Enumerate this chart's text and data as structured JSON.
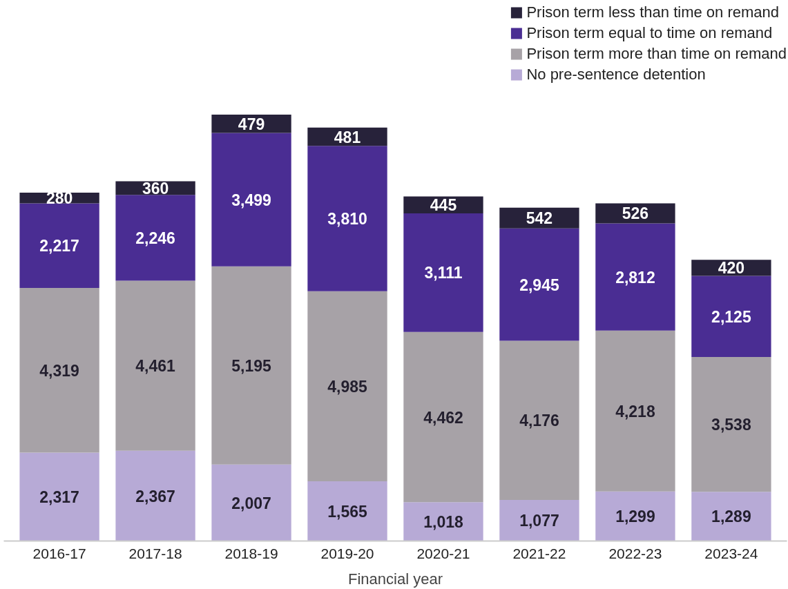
{
  "chart_data": {
    "type": "bar",
    "stacked": true,
    "xlabel": "Financial year",
    "categories": [
      "2016-17",
      "2017-18",
      "2018-19",
      "2019-20",
      "2020-21",
      "2021-22",
      "2022-23",
      "2023-24"
    ],
    "series": [
      {
        "name": "No pre-sentence detention",
        "color": "#b7aad6",
        "values": [
          2317,
          2367,
          2007,
          1565,
          1018,
          1077,
          1299,
          1289
        ],
        "value_labels": [
          "2,317",
          "2,367",
          "2,007",
          "1,565",
          "1,018",
          "1,077",
          "1,299",
          "1,289"
        ]
      },
      {
        "name": "Prison term more than time on remand",
        "color": "#a7a2a7",
        "values": [
          4319,
          4461,
          5195,
          4985,
          4462,
          4176,
          4218,
          3538
        ],
        "value_labels": [
          "4,319",
          "4,461",
          "5,195",
          "4,985",
          "4,462",
          "4,176",
          "4,218",
          "3,538"
        ]
      },
      {
        "name": "Prison term equal to time on remand",
        "color": "#4a2d93",
        "values": [
          2217,
          2246,
          3499,
          3810,
          3111,
          2945,
          2812,
          2125
        ],
        "value_labels": [
          "2,217",
          "2,246",
          "3,499",
          "3,810",
          "3,111",
          "2,945",
          "2,812",
          "2,125"
        ]
      },
      {
        "name": "Prison term less than time on remand",
        "color": "#27223a",
        "values": [
          280,
          360,
          479,
          481,
          445,
          542,
          526,
          420
        ],
        "value_labels": [
          "280",
          "360",
          "479",
          "481",
          "445",
          "542",
          "526",
          "420"
        ]
      }
    ],
    "legend": "top right",
    "grid": false,
    "tick_labels": "x"
  }
}
